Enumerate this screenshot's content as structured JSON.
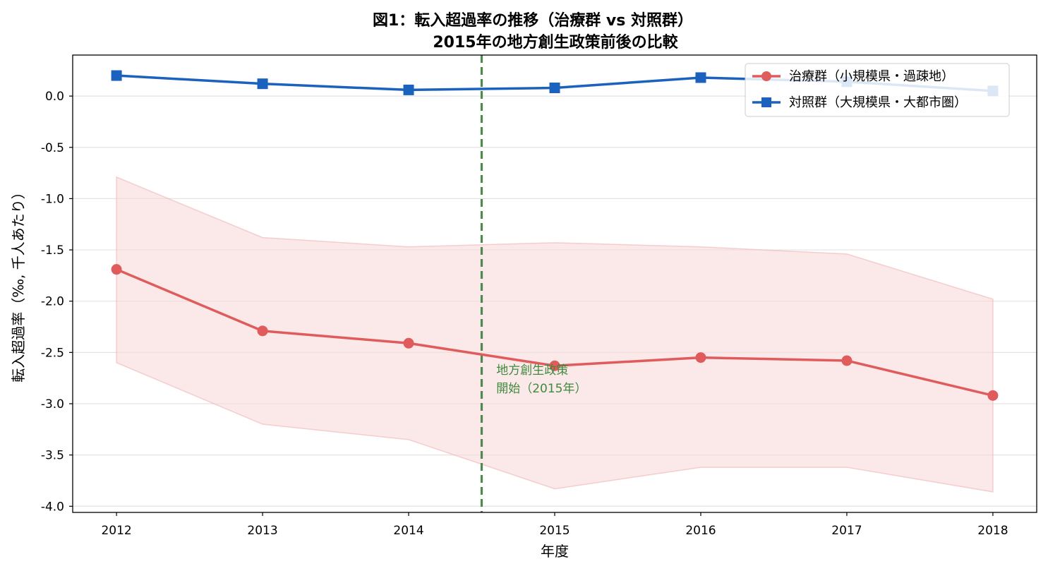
{
  "chart_data": {
    "type": "line",
    "title_lines": [
      "図1：転入超過率の推移（治療群 vs 対照群）",
      "2015年の地方創生政策前後の比較"
    ],
    "xlabel": "年度",
    "ylabel": "転入超過率（‰, 千人あたり）",
    "x": [
      2012,
      2013,
      2014,
      2015,
      2016,
      2017,
      2018
    ],
    "xlim": [
      2011.7,
      2018.3
    ],
    "ylim": [
      -4.06,
      0.4
    ],
    "yticks": [
      0.0,
      -0.5,
      -1.0,
      -1.5,
      -2.0,
      -2.5,
      -3.0,
      -3.5,
      -4.0
    ],
    "ytick_labels": [
      "0.0",
      "-0.5",
      "-1.0",
      "-1.5",
      "-2.0",
      "-2.5",
      "-3.0",
      "-3.5",
      "-4.0"
    ],
    "grid": "horizontal",
    "legend_position": "top-right",
    "series": [
      {
        "name": "治療群（小規模県・過疎地）",
        "color": "#e05c5c",
        "marker": "circle",
        "values": [
          -1.69,
          -2.29,
          -2.41,
          -2.63,
          -2.55,
          -2.58,
          -2.92
        ],
        "band_upper": [
          -0.79,
          -1.38,
          -1.47,
          -1.43,
          -1.47,
          -1.54,
          -1.98
        ],
        "band_lower": [
          -2.6,
          -3.2,
          -3.35,
          -3.83,
          -3.62,
          -3.62,
          -3.86
        ],
        "band_color": "#f9d9d9"
      },
      {
        "name": "対照群（大規模県・大都市圏）",
        "color": "#1a62be",
        "marker": "square",
        "values": [
          0.2,
          0.12,
          0.06,
          0.08,
          0.18,
          0.14,
          0.05
        ]
      }
    ],
    "vline": {
      "x": 2014.5,
      "color": "#4e8a4e",
      "style": "dashed"
    },
    "annotation": {
      "lines": [
        "地方創生政策",
        "開始（2015年）"
      ],
      "x": 2014.6,
      "y": -2.63,
      "color": "#3d8a3d"
    }
  }
}
